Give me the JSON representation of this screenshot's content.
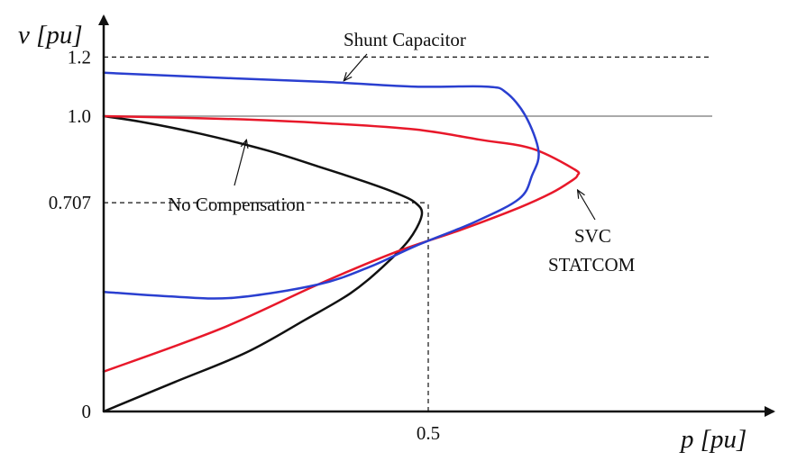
{
  "chart_data": {
    "type": "line",
    "title": "",
    "xlabel": "p [pu]",
    "ylabel": "v [pu]",
    "xlim": [
      0,
      1
    ],
    "ylim": [
      0,
      1.3
    ],
    "grid": false,
    "x_ticks": [
      {
        "value": 0.5,
        "label": "0.5"
      }
    ],
    "y_ticks": [
      {
        "value": 0,
        "label": "0"
      },
      {
        "value": 0.707,
        "label": "0.707"
      },
      {
        "value": 1.0,
        "label": "1.0"
      },
      {
        "value": 1.2,
        "label": "1.2"
      }
    ],
    "series": [
      {
        "color": "#111111",
        "points": [
          [
            0.0,
            1.0
          ],
          [
            0.06,
            0.98
          ],
          [
            0.15,
            0.94
          ],
          [
            0.25,
            0.885
          ],
          [
            0.33,
            0.83
          ],
          [
            0.4,
            0.78
          ],
          [
            0.45,
            0.74
          ],
          [
            0.48,
            0.707
          ],
          [
            0.49,
            0.665
          ],
          [
            0.47,
            0.58
          ],
          [
            0.43,
            0.49
          ],
          [
            0.38,
            0.4
          ],
          [
            0.31,
            0.31
          ],
          [
            0.22,
            0.2
          ],
          [
            0.11,
            0.1
          ],
          [
            0.0,
            0.0
          ]
        ]
      },
      {
        "color": "#e8182a",
        "points": [
          [
            0.0,
            1.0
          ],
          [
            0.2,
            0.99
          ],
          [
            0.35,
            0.975
          ],
          [
            0.48,
            0.955
          ],
          [
            0.58,
            0.92
          ],
          [
            0.66,
            0.89
          ],
          [
            0.725,
            0.82
          ],
          [
            0.73,
            0.8
          ],
          [
            0.72,
            0.78
          ],
          [
            0.69,
            0.74
          ],
          [
            0.64,
            0.69
          ],
          [
            0.55,
            0.615
          ],
          [
            0.45,
            0.54
          ],
          [
            0.33,
            0.43
          ],
          [
            0.18,
            0.28
          ],
          [
            0.0,
            0.135
          ]
        ]
      },
      {
        "color": "#2a3fd0",
        "points": [
          [
            0.0,
            1.147
          ],
          [
            0.2,
            1.128
          ],
          [
            0.35,
            1.115
          ],
          [
            0.48,
            1.1
          ],
          [
            0.59,
            1.1
          ],
          [
            0.62,
            1.08
          ],
          [
            0.65,
            1.0
          ],
          [
            0.67,
            0.88
          ],
          [
            0.66,
            0.8
          ],
          [
            0.64,
            0.72
          ],
          [
            0.57,
            0.64
          ],
          [
            0.48,
            0.56
          ],
          [
            0.41,
            0.49
          ],
          [
            0.33,
            0.43
          ],
          [
            0.2,
            0.385
          ],
          [
            0.1,
            0.39
          ],
          [
            0.0,
            0.405
          ]
        ]
      }
    ],
    "reference_lines": [
      {
        "orientation": "horizontal",
        "y": 1.2,
        "style": "dashed",
        "color": "#111111"
      },
      {
        "orientation": "horizontal",
        "y": 1.0,
        "style": "solid",
        "color": "#aaaaaa"
      },
      {
        "orientation": "horizontal",
        "y": 0.707,
        "x_end": 0.5,
        "style": "dashed",
        "color": "#111111"
      },
      {
        "orientation": "vertical",
        "x": 0.5,
        "y_end": 0.707,
        "style": "dashed",
        "color": "#111111"
      }
    ],
    "annotations": [
      {
        "text": "Shunt Capacitor",
        "points_to": [
          0.37,
          1.12
        ]
      },
      {
        "text": "No Compensation",
        "points_to": [
          0.22,
          0.92
        ]
      },
      {
        "text": "SVC",
        "points_to": [
          0.73,
          0.75
        ]
      },
      {
        "text": "STATCOM",
        "points_to": null
      }
    ]
  }
}
